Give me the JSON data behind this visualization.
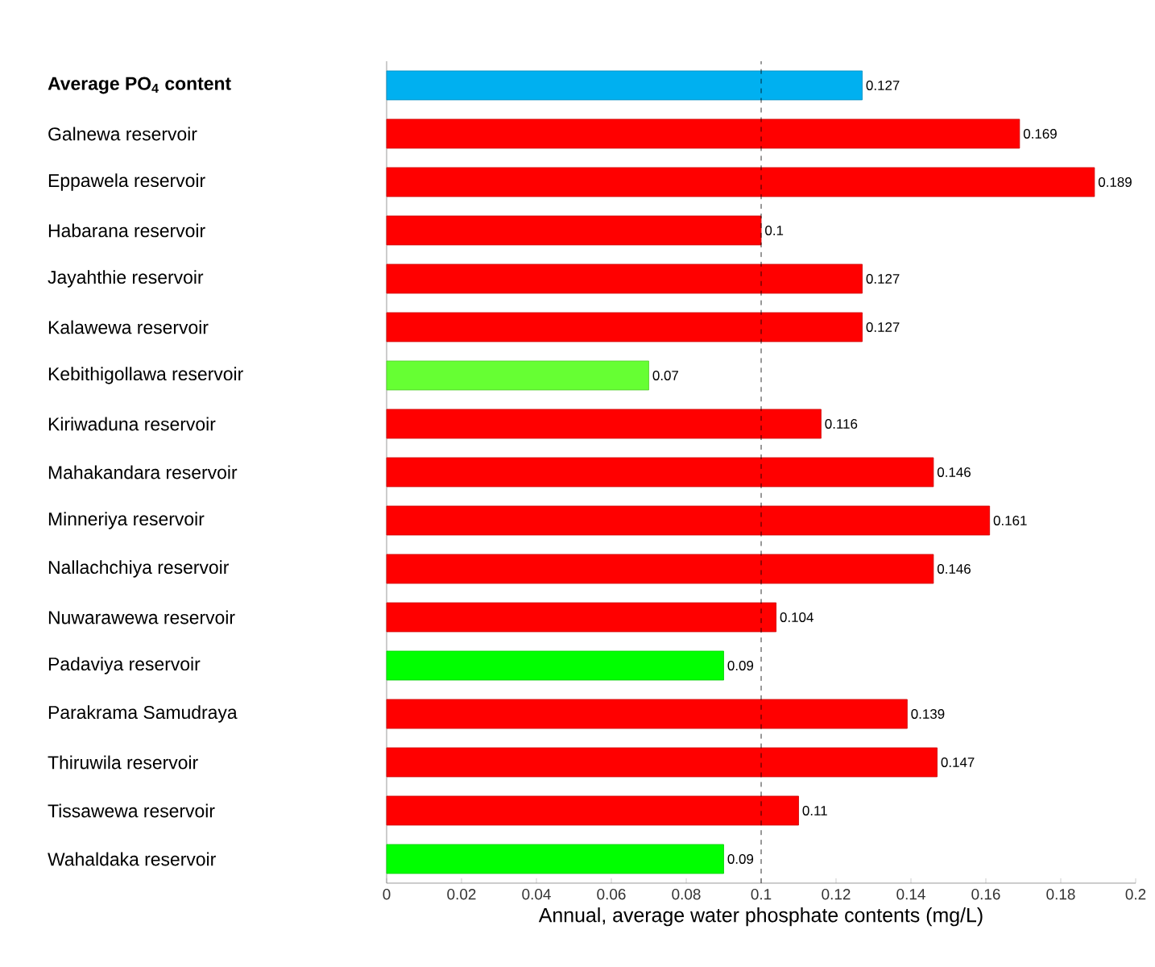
{
  "chart_data": {
    "type": "bar",
    "orientation": "horizontal",
    "xlabel": "Annual, average water phosphate contents (mg/L)",
    "categories": [
      "**Average PO$_{4}$ content**",
      "Galnewa reservoir",
      "Eppawela reservoir",
      "Habarana reservoir",
      "Jayahthie reservoir",
      "Kalawewa reservoir",
      "Kebithigollawa reservoir",
      "Kiriwaduna reservoir",
      "Mahakandara reservoir",
      "Minneriya reservoir",
      "Nallachchiya reservoir",
      "Nuwarawewa reservoir",
      "Padaviya reservoir",
      "Parakrama Samudraya",
      "Thiruwila reservoir",
      "Tissawewa reservoir",
      "Wahaldaka reservoir"
    ],
    "values": [
      0.127,
      0.169,
      0.189,
      0.1,
      0.127,
      0.127,
      0.07,
      0.116,
      0.146,
      0.161,
      0.146,
      0.104,
      0.09,
      0.139,
      0.147,
      0.11,
      0.09
    ],
    "colors": [
      "#00b0f0",
      "#ff0000",
      "#ff0000",
      "#ff0000",
      "#ff0000",
      "#ff0000",
      "#66ff33",
      "#ff0000",
      "#ff0000",
      "#ff0000",
      "#ff0000",
      "#ff0000",
      "#00ff00",
      "#ff0000",
      "#ff0000",
      "#ff0000",
      "#00ff00"
    ],
    "data_labels": true,
    "xlim": [
      0,
      0.2
    ],
    "xticks": [
      0,
      0.02,
      0.04,
      0.06,
      0.08,
      0.1,
      0.12,
      0.14,
      0.16,
      0.18,
      0.2
    ],
    "ref_lines": [
      {
        "axis": "x",
        "value": 0.1,
        "line_style": "dashed",
        "color": "#000000"
      }
    ]
  }
}
